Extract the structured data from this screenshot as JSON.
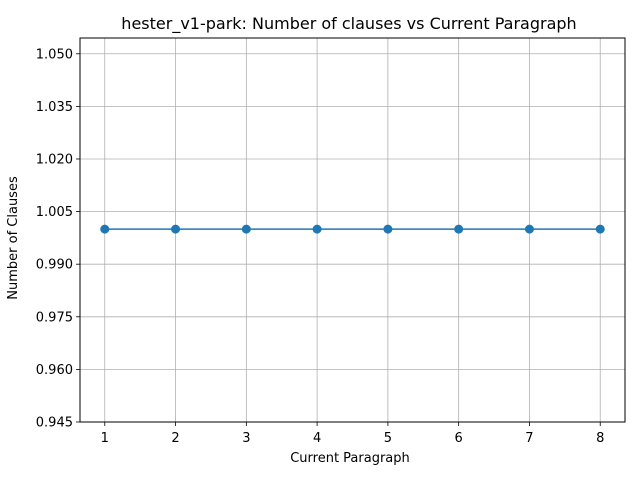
{
  "chart_data": {
    "type": "line",
    "title": "hester_v1-park: Number of clauses vs Current Paragraph",
    "xlabel": "Current Paragraph",
    "ylabel": "Number of Clauses",
    "x": [
      1,
      2,
      3,
      4,
      5,
      6,
      7,
      8
    ],
    "xticks": [
      "1",
      "2",
      "3",
      "4",
      "5",
      "6",
      "7",
      "8"
    ],
    "xlim": [
      0.65,
      8.35
    ],
    "yticks": [
      "0.945",
      "0.960",
      "0.975",
      "0.990",
      "1.005",
      "1.020",
      "1.035",
      "1.050"
    ],
    "ytick_values": [
      0.945,
      0.96,
      0.975,
      0.99,
      1.005,
      1.02,
      1.035,
      1.05
    ],
    "ylim": [
      0.945,
      1.0545
    ],
    "grid": true,
    "series": [
      {
        "name": "Number of Clauses",
        "values": [
          1,
          1,
          1,
          1,
          1,
          1,
          1,
          1
        ],
        "color": "#1f77b4",
        "marker": "circle"
      }
    ]
  }
}
